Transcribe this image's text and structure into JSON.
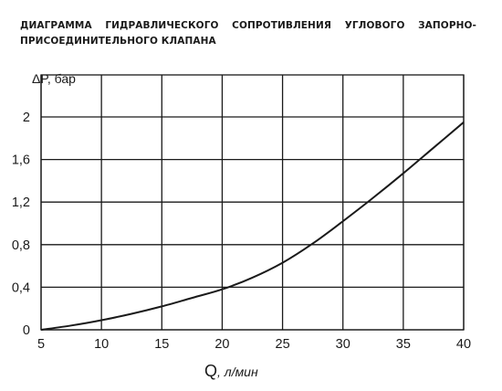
{
  "title": {
    "line1": [
      "ДИАГРАММА",
      "ГИДРАВЛИЧЕСКОГО",
      "СОПРОТИВЛЕНИЯ",
      "УГЛОВОГО",
      "ЗАПОРНО-"
    ],
    "line2": "ПРИСОЕДИНИТЕЛЬНОГО КЛАПАНА"
  },
  "chart_data": {
    "type": "line",
    "title": "ДИАГРАММА ГИДРАВЛИЧЕСКОГО СОПРОТИВЛЕНИЯ УГЛОВОГО ЗАПОРНО-ПРИСОЕДИНИТЕЛЬНОГО КЛАПАНА",
    "ylabel": "ΔP, бар",
    "xlabel_main": "Q",
    "xlabel_unit": ", л/мин",
    "x_ticks": [
      "5",
      "10",
      "15",
      "20",
      "25",
      "30",
      "35",
      "40"
    ],
    "y_ticks": [
      "0",
      "0,4",
      "0,8",
      "1,2",
      "1,6",
      "2"
    ],
    "xlim": [
      5,
      40
    ],
    "ylim": [
      0,
      2
    ],
    "grid": true,
    "series": [
      {
        "x": [
          5,
          7.5,
          10,
          12.5,
          15,
          17.5,
          20,
          22.5,
          25,
          27.5,
          30,
          32.5,
          35,
          37.5,
          40
        ],
        "values": [
          0,
          0.04,
          0.09,
          0.15,
          0.22,
          0.3,
          0.38,
          0.49,
          0.63,
          0.81,
          1.02,
          1.24,
          1.47,
          1.71,
          1.95
        ],
        "color": "#1a1a1a"
      }
    ]
  }
}
